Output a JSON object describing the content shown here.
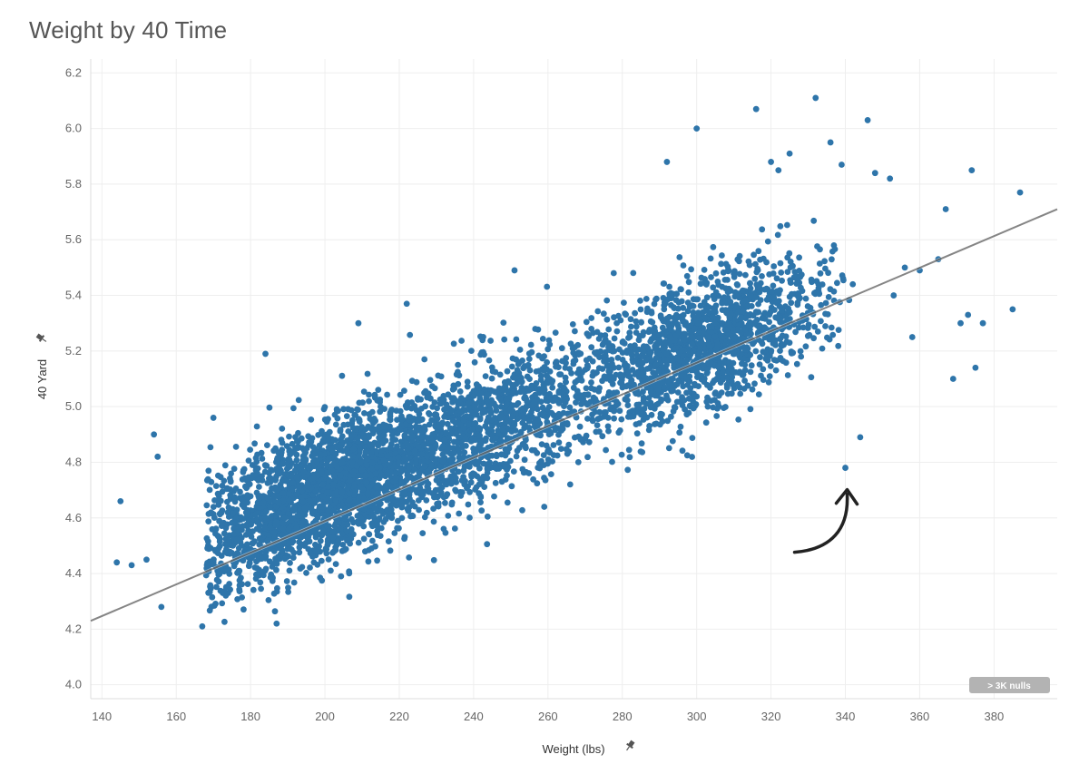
{
  "chart_data": {
    "type": "scatter",
    "title": "Weight by 40 Time",
    "xlabel": "Weight (lbs)",
    "ylabel": "40 Yard",
    "xlim": [
      137,
      397
    ],
    "ylim": [
      3.95,
      6.25
    ],
    "x_ticks": [
      140,
      160,
      180,
      200,
      220,
      240,
      260,
      280,
      300,
      320,
      340,
      360,
      380
    ],
    "y_ticks": [
      "4.0",
      "4.2",
      "4.4",
      "4.6",
      "4.8",
      "5.0",
      "5.2",
      "5.4",
      "5.6",
      "5.8",
      "6.0",
      "6.2"
    ],
    "grid": true,
    "legend": "none",
    "marker_color": "#2e75aa",
    "trend_line": {
      "color": "#333333",
      "points": [
        [
          137,
          4.23
        ],
        [
          397,
          5.71
        ]
      ]
    },
    "cluster_summary": [
      {
        "x_range": [
          165,
          345
        ],
        "y_center_at_170": 4.53,
        "y_center_at_300": 5.22,
        "spread": 0.12
      }
    ],
    "outliers": [
      {
        "x": 144,
        "y": 4.44
      },
      {
        "x": 145,
        "y": 4.66
      },
      {
        "x": 148,
        "y": 4.43
      },
      {
        "x": 152,
        "y": 4.45
      },
      {
        "x": 154,
        "y": 4.9
      },
      {
        "x": 155,
        "y": 4.82
      },
      {
        "x": 156,
        "y": 4.28
      },
      {
        "x": 167,
        "y": 4.21
      },
      {
        "x": 170,
        "y": 4.96
      },
      {
        "x": 184,
        "y": 5.19
      },
      {
        "x": 187,
        "y": 4.22
      },
      {
        "x": 209,
        "y": 5.3
      },
      {
        "x": 222,
        "y": 5.37
      },
      {
        "x": 251,
        "y": 5.49
      },
      {
        "x": 259,
        "y": 4.64
      },
      {
        "x": 292,
        "y": 5.88
      },
      {
        "x": 300,
        "y": 6.0
      },
      {
        "x": 303,
        "y": 5.0
      },
      {
        "x": 316,
        "y": 6.07
      },
      {
        "x": 320,
        "y": 5.88
      },
      {
        "x": 322,
        "y": 5.85
      },
      {
        "x": 325,
        "y": 5.91
      },
      {
        "x": 332,
        "y": 6.11
      },
      {
        "x": 336,
        "y": 5.95
      },
      {
        "x": 339,
        "y": 5.87
      },
      {
        "x": 340,
        "y": 4.78
      },
      {
        "x": 342,
        "y": 5.44
      },
      {
        "x": 344,
        "y": 4.89
      },
      {
        "x": 346,
        "y": 6.03
      },
      {
        "x": 348,
        "y": 5.84
      },
      {
        "x": 352,
        "y": 5.82
      },
      {
        "x": 353,
        "y": 5.4
      },
      {
        "x": 356,
        "y": 5.5
      },
      {
        "x": 358,
        "y": 5.25
      },
      {
        "x": 360,
        "y": 5.49
      },
      {
        "x": 365,
        "y": 5.53
      },
      {
        "x": 367,
        "y": 5.71
      },
      {
        "x": 369,
        "y": 5.1
      },
      {
        "x": 371,
        "y": 5.3
      },
      {
        "x": 373,
        "y": 5.33
      },
      {
        "x": 374,
        "y": 5.85
      },
      {
        "x": 375,
        "y": 5.14
      },
      {
        "x": 377,
        "y": 5.3
      },
      {
        "x": 385,
        "y": 5.35
      },
      {
        "x": 387,
        "y": 5.77
      }
    ],
    "annotation": {
      "type": "curved-arrow",
      "target": {
        "x": 340,
        "y": 4.78
      },
      "color": "#222222"
    },
    "badge": {
      "label": "> 3K nulls",
      "color": "#b3b3b3"
    }
  }
}
